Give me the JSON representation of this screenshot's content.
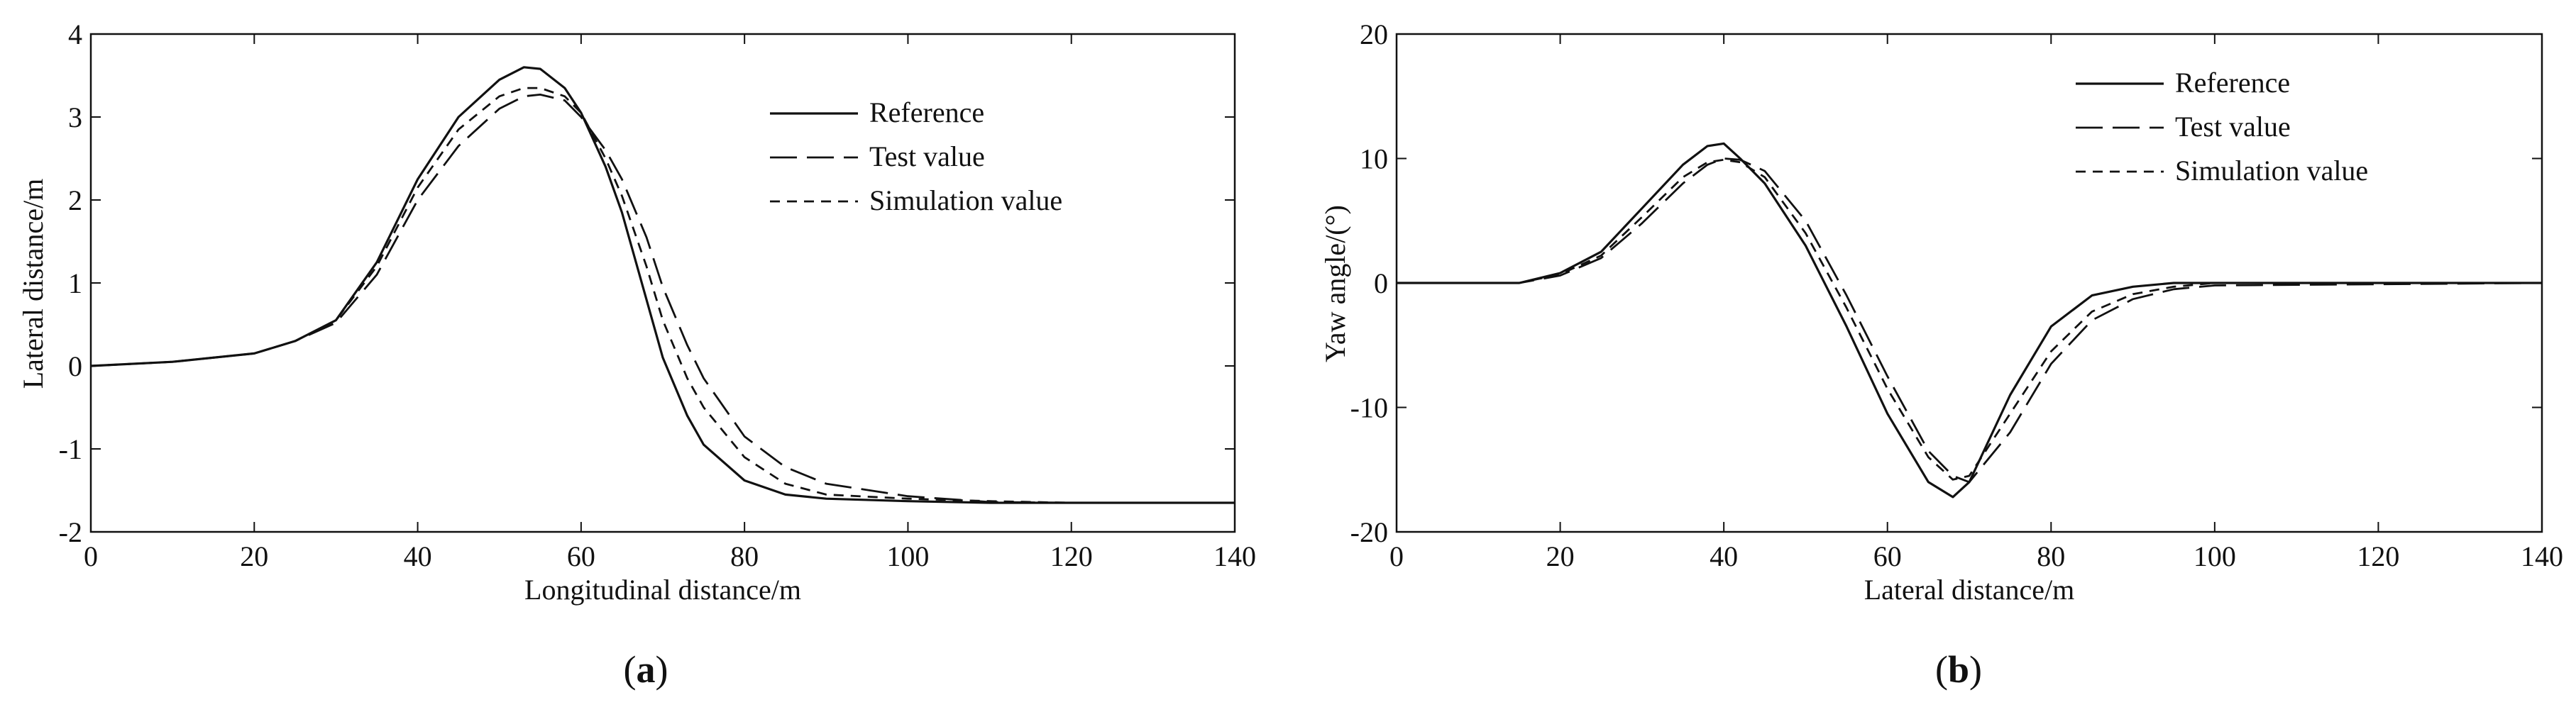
{
  "chart_data": [
    {
      "type": "line",
      "panel_label": "a",
      "xlabel": "Longitudinal distance/m",
      "ylabel": "Lateral distance/m",
      "xlim": [
        0,
        140
      ],
      "ylim": [
        -2,
        4
      ],
      "xticks": [
        "0",
        "20",
        "40",
        "60",
        "80",
        "100",
        "120",
        "140"
      ],
      "yticks": [
        "-2",
        "-1",
        "0",
        "1",
        "2",
        "3",
        "4"
      ],
      "grid": false,
      "legend_position": "top-right",
      "series": [
        {
          "name": "Reference",
          "x": [
            0,
            10,
            20,
            25,
            30,
            35,
            40,
            45,
            50,
            53,
            55,
            58,
            60,
            63,
            65,
            68,
            70,
            73,
            75,
            80,
            85,
            90,
            100,
            110,
            120,
            130,
            140
          ],
          "y": [
            0,
            0.05,
            0.15,
            0.3,
            0.55,
            1.25,
            2.25,
            3.0,
            3.45,
            3.6,
            3.58,
            3.35,
            3.05,
            2.4,
            1.85,
            0.8,
            0.1,
            -0.6,
            -0.95,
            -1.38,
            -1.55,
            -1.6,
            -1.63,
            -1.65,
            -1.65,
            -1.65,
            -1.65
          ]
        },
        {
          "name": "Test value",
          "x": [
            0,
            10,
            20,
            25,
            30,
            35,
            40,
            45,
            50,
            53,
            55,
            58,
            60,
            63,
            65,
            68,
            70,
            73,
            75,
            80,
            85,
            90,
            100,
            110,
            120,
            130,
            140
          ],
          "y": [
            0,
            0.05,
            0.15,
            0.3,
            0.52,
            1.1,
            2.0,
            2.65,
            3.1,
            3.25,
            3.27,
            3.2,
            3.0,
            2.6,
            2.25,
            1.55,
            0.95,
            0.25,
            -0.15,
            -0.85,
            -1.22,
            -1.42,
            -1.57,
            -1.64,
            -1.65,
            -1.65,
            -1.65
          ]
        },
        {
          "name": "Simulation value",
          "x": [
            0,
            10,
            20,
            25,
            30,
            35,
            40,
            45,
            50,
            53,
            55,
            58,
            60,
            63,
            65,
            68,
            70,
            73,
            75,
            80,
            85,
            90,
            100,
            110,
            120,
            130,
            140
          ],
          "y": [
            0,
            0.05,
            0.15,
            0.3,
            0.55,
            1.2,
            2.15,
            2.85,
            3.25,
            3.35,
            3.35,
            3.25,
            3.05,
            2.5,
            2.05,
            1.2,
            0.55,
            -0.15,
            -0.5,
            -1.1,
            -1.42,
            -1.55,
            -1.6,
            -1.63,
            -1.65,
            -1.65,
            -1.65
          ]
        }
      ]
    },
    {
      "type": "line",
      "panel_label": "b",
      "xlabel": "Lateral distance/m",
      "ylabel": "Yaw angle/(°)",
      "xlim": [
        0,
        140
      ],
      "ylim": [
        -20,
        20
      ],
      "xticks": [
        "0",
        "20",
        "40",
        "60",
        "80",
        "100",
        "120",
        "140"
      ],
      "yticks": [
        "-20",
        "-10",
        "0",
        "10",
        "20"
      ],
      "grid": false,
      "legend_position": "top-right",
      "series": [
        {
          "name": "Reference",
          "x": [
            0,
            10,
            15,
            20,
            25,
            30,
            35,
            38,
            40,
            42,
            45,
            50,
            55,
            60,
            65,
            68,
            70,
            75,
            80,
            85,
            90,
            95,
            100,
            120,
            140
          ],
          "y": [
            0,
            0,
            0,
            0.8,
            2.5,
            6.0,
            9.5,
            11.0,
            11.2,
            10.0,
            8.0,
            3.0,
            -3.5,
            -10.5,
            -16.0,
            -17.2,
            -16.0,
            -9.0,
            -3.5,
            -1.0,
            -0.3,
            0,
            0,
            0,
            0
          ]
        },
        {
          "name": "Test value",
          "x": [
            0,
            10,
            15,
            20,
            25,
            30,
            35,
            38,
            40,
            42,
            45,
            50,
            55,
            60,
            65,
            68,
            70,
            75,
            80,
            85,
            90,
            95,
            100,
            120,
            140
          ],
          "y": [
            0,
            0,
            0,
            0.6,
            2.0,
            4.8,
            8.0,
            9.5,
            10.0,
            9.9,
            9.0,
            5.0,
            -1.0,
            -7.5,
            -13.5,
            -15.5,
            -16.0,
            -12.0,
            -6.5,
            -3.0,
            -1.3,
            -0.5,
            -0.2,
            -0.1,
            0
          ]
        },
        {
          "name": "Simulation value",
          "x": [
            0,
            10,
            15,
            20,
            25,
            30,
            35,
            38,
            40,
            42,
            45,
            50,
            55,
            60,
            65,
            68,
            70,
            75,
            80,
            85,
            90,
            95,
            100,
            120,
            140
          ],
          "y": [
            0,
            0,
            0,
            0.7,
            2.2,
            5.3,
            8.5,
            9.7,
            9.9,
            9.7,
            8.5,
            4.0,
            -2.0,
            -8.5,
            -14.0,
            -15.8,
            -15.5,
            -10.5,
            -5.5,
            -2.3,
            -0.9,
            -0.3,
            0,
            0,
            0
          ]
        }
      ]
    }
  ],
  "captions": [
    {
      "open": "(",
      "letter": "a",
      "close": ")"
    },
    {
      "open": "(",
      "letter": "b",
      "close": ")"
    }
  ]
}
